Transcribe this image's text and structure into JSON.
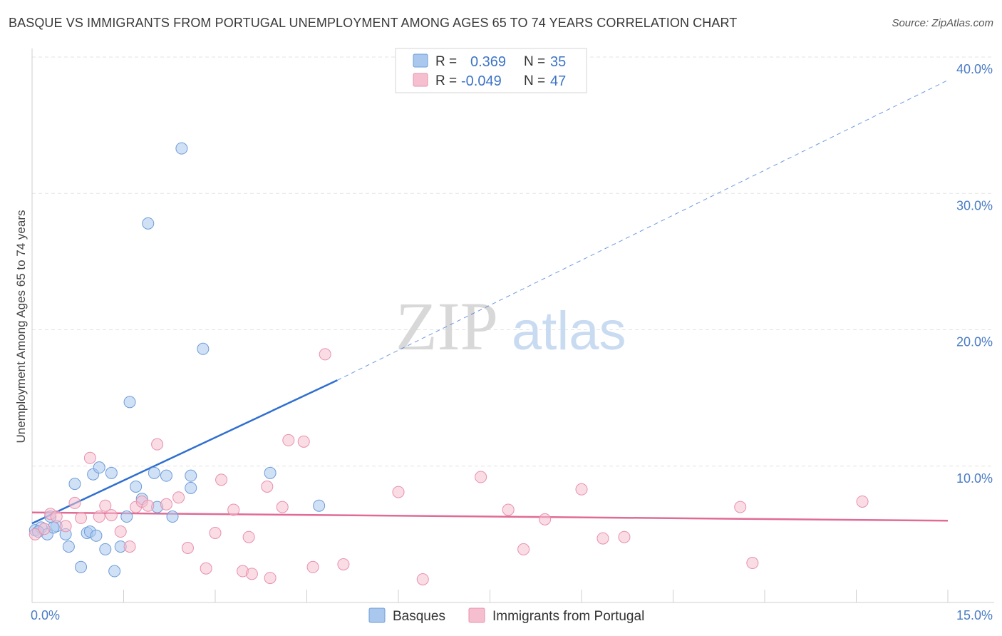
{
  "title": "BASQUE VS IMMIGRANTS FROM PORTUGAL UNEMPLOYMENT AMONG AGES 65 TO 74 YEARS CORRELATION CHART",
  "source": "Source: ZipAtlas.com",
  "watermark": {
    "zip": "ZIP",
    "atlas": "atlas"
  },
  "colors": {
    "blue_fill": "#aac8ee",
    "blue_stroke": "#6d9bd8",
    "blue_line": "#2f6fd0",
    "pink_fill": "#f6bfd0",
    "pink_stroke": "#e890ad",
    "pink_line": "#e06b95",
    "grid": "#e3e3e3",
    "axis_text": "#4a7cc4"
  },
  "legend_top": {
    "rows": [
      {
        "r_label": "R =",
        "r_value": "0.369",
        "n_label": "N =",
        "n_value": "35",
        "series": "blue"
      },
      {
        "r_label": "R =",
        "r_value": "-0.049",
        "n_label": "N =",
        "n_value": "47",
        "series": "pink"
      }
    ]
  },
  "legend_bottom": {
    "items": [
      {
        "label": "Basques",
        "series": "blue"
      },
      {
        "label": "Immigrants from Portugal",
        "series": "pink"
      }
    ]
  },
  "chart_data": {
    "type": "scatter",
    "title": "BASQUE VS IMMIGRANTS FROM PORTUGAL UNEMPLOYMENT AMONG AGES 65 TO 74 YEARS CORRELATION CHART",
    "xlabel": "",
    "ylabel": "Unemployment Among Ages 65 to 74 years",
    "xlim": [
      0,
      15
    ],
    "ylim": [
      0,
      40
    ],
    "x_tick_labels": [
      {
        "value": 0,
        "label": "0.0%"
      },
      {
        "value": 15,
        "label": "15.0%"
      }
    ],
    "y_tick_labels": [
      {
        "value": 10,
        "label": "10.0%"
      },
      {
        "value": 20,
        "label": "20.0%"
      },
      {
        "value": 30,
        "label": "30.0%"
      },
      {
        "value": 40,
        "label": "40.0%"
      }
    ],
    "series": [
      {
        "name": "Basques",
        "color": "blue",
        "points": [
          [
            0.05,
            5.3
          ],
          [
            0.15,
            5.5
          ],
          [
            0.25,
            5.0
          ],
          [
            0.3,
            6.3
          ],
          [
            0.4,
            5.6
          ],
          [
            0.55,
            5.0
          ],
          [
            0.6,
            4.1
          ],
          [
            0.7,
            8.7
          ],
          [
            0.8,
            2.6
          ],
          [
            0.9,
            5.1
          ],
          [
            0.95,
            5.2
          ],
          [
            1.0,
            9.4
          ],
          [
            1.05,
            4.9
          ],
          [
            1.1,
            9.9
          ],
          [
            1.2,
            3.9
          ],
          [
            1.3,
            9.5
          ],
          [
            1.35,
            2.3
          ],
          [
            1.45,
            4.1
          ],
          [
            1.55,
            6.3
          ],
          [
            1.6,
            14.7
          ],
          [
            1.7,
            8.5
          ],
          [
            1.8,
            7.6
          ],
          [
            1.9,
            27.8
          ],
          [
            2.0,
            9.5
          ],
          [
            2.05,
            7.0
          ],
          [
            2.2,
            9.3
          ],
          [
            2.3,
            6.3
          ],
          [
            2.45,
            33.3
          ],
          [
            2.6,
            8.4
          ],
          [
            2.6,
            9.3
          ],
          [
            2.8,
            18.6
          ],
          [
            3.9,
            9.5
          ],
          [
            4.7,
            7.1
          ],
          [
            0.35,
            5.5
          ],
          [
            0.1,
            5.2
          ]
        ],
        "trend": {
          "x": [
            0.0,
            5.0
          ],
          "y": [
            5.8,
            16.3
          ],
          "extended": {
            "x": [
              5.0,
              15.0
            ],
            "y": [
              16.3,
              38.3
            ]
          }
        }
      },
      {
        "name": "Immigrants from Portugal",
        "color": "pink",
        "points": [
          [
            0.05,
            5.0
          ],
          [
            0.2,
            5.4
          ],
          [
            0.3,
            6.5
          ],
          [
            0.4,
            6.3
          ],
          [
            0.55,
            5.6
          ],
          [
            0.7,
            7.3
          ],
          [
            0.8,
            6.2
          ],
          [
            0.95,
            10.6
          ],
          [
            1.1,
            6.3
          ],
          [
            1.2,
            7.1
          ],
          [
            1.3,
            6.4
          ],
          [
            1.45,
            5.2
          ],
          [
            1.6,
            4.1
          ],
          [
            1.7,
            7.0
          ],
          [
            1.8,
            7.4
          ],
          [
            1.9,
            7.1
          ],
          [
            2.05,
            11.6
          ],
          [
            2.2,
            7.2
          ],
          [
            2.4,
            7.7
          ],
          [
            2.55,
            4.0
          ],
          [
            2.85,
            2.5
          ],
          [
            3.0,
            5.1
          ],
          [
            3.1,
            9.0
          ],
          [
            3.3,
            6.8
          ],
          [
            3.45,
            2.3
          ],
          [
            3.55,
            4.8
          ],
          [
            3.6,
            2.1
          ],
          [
            3.85,
            8.5
          ],
          [
            3.9,
            1.8
          ],
          [
            4.1,
            7.0
          ],
          [
            4.2,
            11.9
          ],
          [
            4.45,
            11.8
          ],
          [
            4.6,
            2.6
          ],
          [
            4.8,
            18.2
          ],
          [
            5.1,
            2.8
          ],
          [
            6.0,
            8.1
          ],
          [
            6.4,
            1.7
          ],
          [
            7.35,
            9.2
          ],
          [
            7.8,
            6.8
          ],
          [
            8.05,
            3.9
          ],
          [
            8.4,
            6.1
          ],
          [
            9.0,
            8.3
          ],
          [
            9.35,
            4.7
          ],
          [
            9.7,
            4.8
          ],
          [
            11.6,
            7.0
          ],
          [
            11.8,
            2.9
          ],
          [
            13.6,
            7.4
          ]
        ],
        "trend": {
          "x": [
            0.0,
            15.0
          ],
          "y": [
            6.6,
            6.0
          ]
        }
      }
    ]
  }
}
